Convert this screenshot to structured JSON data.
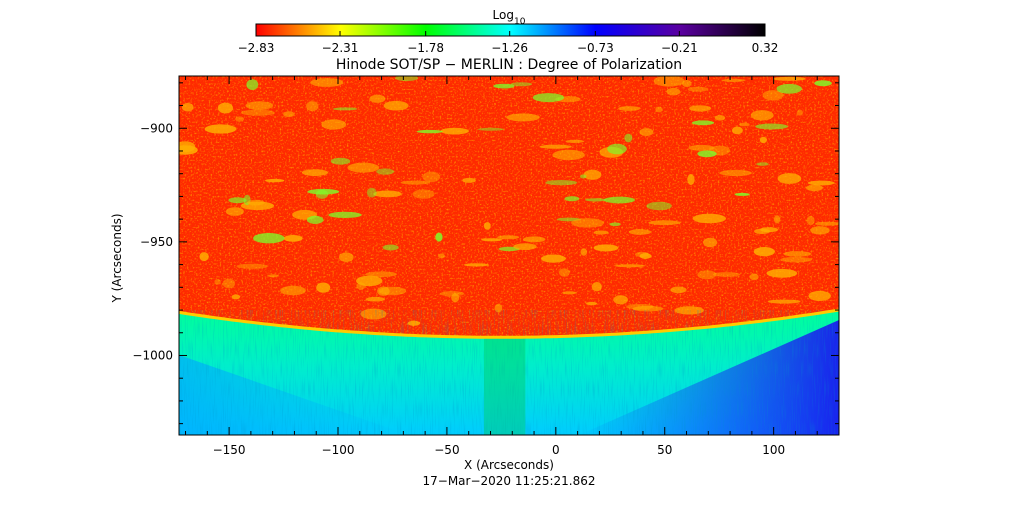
{
  "chart_data": {
    "type": "heatmap",
    "title": "Hinode SOT/SP − MERLIN : Degree of Polarization",
    "xlabel": "X (Arcseconds)",
    "ylabel": "Y (Arcseconds)",
    "timestamp": "17−Mar−2020 11:25:21.862",
    "xlim": [
      -173,
      130
    ],
    "ylim": [
      -1035,
      -877
    ],
    "x_ticks": [
      {
        "value": -150,
        "label": "−150"
      },
      {
        "value": -100,
        "label": "−100"
      },
      {
        "value": -50,
        "label": "−50"
      },
      {
        "value": 0,
        "label": "0"
      },
      {
        "value": 50,
        "label": "50"
      },
      {
        "value": 100,
        "label": "100"
      }
    ],
    "y_ticks": [
      {
        "value": -900,
        "label": "−900"
      },
      {
        "value": -950,
        "label": "−950"
      },
      {
        "value": -1000,
        "label": "−1000"
      }
    ],
    "colorbar": {
      "label_base": "Log",
      "label_sub": "10",
      "range": [
        -2.83,
        0.32
      ],
      "ticks": [
        {
          "value": -2.83,
          "label": "−2.83"
        },
        {
          "value": -2.31,
          "label": "−2.31"
        },
        {
          "value": -1.78,
          "label": "−1.78"
        },
        {
          "value": -1.26,
          "label": "−1.26"
        },
        {
          "value": -0.73,
          "label": "−0.73"
        },
        {
          "value": -0.21,
          "label": "−0.21"
        },
        {
          "value": 0.32,
          "label": "0.32"
        }
      ],
      "colors": [
        "#ff0000",
        "#ffff00",
        "#00ff00",
        "#00ffff",
        "#0000ff",
        "#5a00a0",
        "#000000"
      ]
    },
    "grid": false,
    "limb": {
      "center_x": -25,
      "center_y": -992,
      "edge_x": [
        -173,
        130
      ],
      "edge_y": -980
    },
    "regions": [
      {
        "name": "on-disk",
        "value": -2.83
      },
      {
        "name": "limb",
        "value": -1.9
      },
      {
        "name": "off-limb-near",
        "value": -1.45
      },
      {
        "name": "off-limb-far",
        "value": -0.9
      }
    ]
  }
}
